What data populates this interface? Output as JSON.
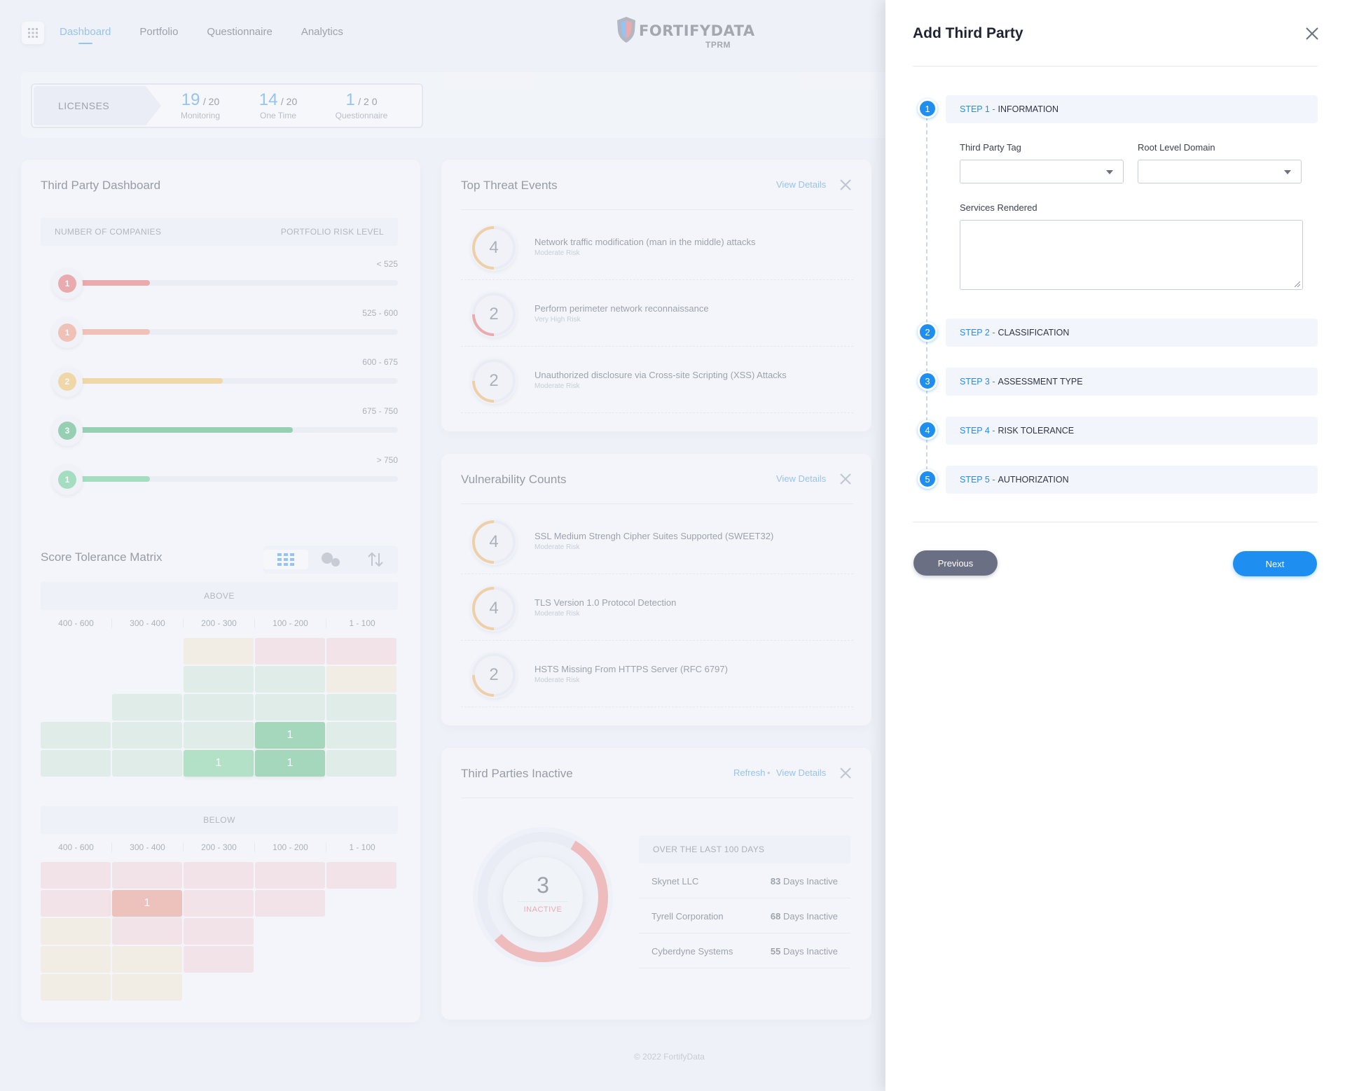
{
  "nav": {
    "items": [
      "Dashboard",
      "Portfolio",
      "Questionnaire",
      "Analytics"
    ],
    "active": "Dashboard"
  },
  "logo": {
    "brand": "FORTIFYDATA",
    "sub": "TPRM"
  },
  "licenses": {
    "label": "LICENSES",
    "stats": [
      {
        "value": "19",
        "total": "/ 20",
        "label": "Monitoring"
      },
      {
        "value": "14",
        "total": "/ 20",
        "label": "One Time"
      },
      {
        "value": "1",
        "total": "/ 2 0",
        "label": "Questionnaire"
      }
    ]
  },
  "third_party_dashboard": {
    "title": "Third Party Dashboard",
    "col_left": "NUMBER OF COMPANIES",
    "col_right": "PORTFOLIO RISK LEVEL",
    "rows": [
      {
        "count": "1",
        "range": "< 525",
        "fill": 0.22,
        "color": "#e35757"
      },
      {
        "count": "1",
        "range": "525 - 600",
        "fill": 0.22,
        "color": "#f4896b"
      },
      {
        "count": "2",
        "range": "600 - 675",
        "fill": 0.45,
        "color": "#f2b94a"
      },
      {
        "count": "3",
        "range": "675 - 750",
        "fill": 0.67,
        "color": "#2fa862"
      },
      {
        "count": "1",
        "range": "> 750",
        "fill": 0.22,
        "color": "#4cc77d"
      }
    ]
  },
  "score_tolerance": {
    "title": "Score Tolerance Matrix",
    "above_label": "ABOVE",
    "below_label": "BELOW",
    "columns": [
      "400 - 600",
      "300 - 400",
      "200 - 300",
      "100 - 200",
      "1 - 100"
    ],
    "above_values": [
      {
        "value": "1"
      },
      {
        "value": "1"
      },
      {
        "value": "1"
      }
    ],
    "below_values": [
      {
        "value": "1"
      }
    ]
  },
  "top_threats": {
    "title": "Top Threat Events",
    "view_details": "View Details",
    "items": [
      {
        "count": "4",
        "title": "Network traffic modification (man in the middle) attacks",
        "risk": "Moderate Risk",
        "color": "#f2a64a",
        "fraction": 0.5
      },
      {
        "count": "2",
        "title": "Perform perimeter network reconnaissance",
        "risk": "Very High Risk",
        "color": "#e35757",
        "fraction": 0.25
      },
      {
        "count": "2",
        "title": "Unauthorized disclosure via Cross-site Scripting (XSS) Attacks",
        "risk": "Moderate Risk",
        "color": "#f2a64a",
        "fraction": 0.25
      }
    ]
  },
  "vulnerabilities": {
    "title": "Vulnerability Counts",
    "view_details": "View Details",
    "items": [
      {
        "count": "4",
        "title": "SSL Medium Strengh Cipher Suites Supported (SWEET32)",
        "risk": "Moderate Risk",
        "color": "#f2a64a",
        "fraction": 0.5
      },
      {
        "count": "4",
        "title": "TLS Version 1.0 Protocol Detection",
        "risk": "Moderate Risk",
        "color": "#f2a64a",
        "fraction": 0.5
      },
      {
        "count": "2",
        "title": "HSTS Missing From HTTPS Server (RFC 6797)",
        "risk": "Moderate Risk",
        "color": "#f2a64a",
        "fraction": 0.25
      }
    ]
  },
  "inactive": {
    "title": "Third Parties Inactive",
    "refresh": "Refresh",
    "separator": "•",
    "view_details": "View Details",
    "count": "3",
    "count_label": "INACTIVE",
    "fraction": 0.55,
    "period": "OVER THE LAST 100 DAYS",
    "rows": [
      {
        "name": "Skynet LLC",
        "days": "83",
        "suffix": "Days Inactive"
      },
      {
        "name": "Tyrell Corporation",
        "days": "68",
        "suffix": "Days Inactive"
      },
      {
        "name": "Cyberdyne Systems",
        "days": "55",
        "suffix": "Days Inactive"
      }
    ]
  },
  "footer": "© 2022 FortifyData",
  "modal": {
    "title": "Add Third Party",
    "steps": [
      {
        "num": "1",
        "prefix": "STEP 1 -",
        "name": "INFORMATION"
      },
      {
        "num": "2",
        "prefix": "STEP 2 -",
        "name": "CLASSIFICATION"
      },
      {
        "num": "3",
        "prefix": "STEP 3 -",
        "name": "ASSESSMENT TYPE"
      },
      {
        "num": "4",
        "prefix": "STEP 4 -",
        "name": "RISK TOLERANCE"
      },
      {
        "num": "5",
        "prefix": "STEP 5 -",
        "name": "AUTHORIZATION"
      }
    ],
    "fields": {
      "tag_label": "Third Party Tag",
      "tag_value": "",
      "domain_label": "Root Level Domain",
      "domain_value": "",
      "services_label": "Services Rendered",
      "services_value": ""
    },
    "prev_label": "Previous",
    "next_label": "Next",
    "accent": "#1e8ff0"
  }
}
